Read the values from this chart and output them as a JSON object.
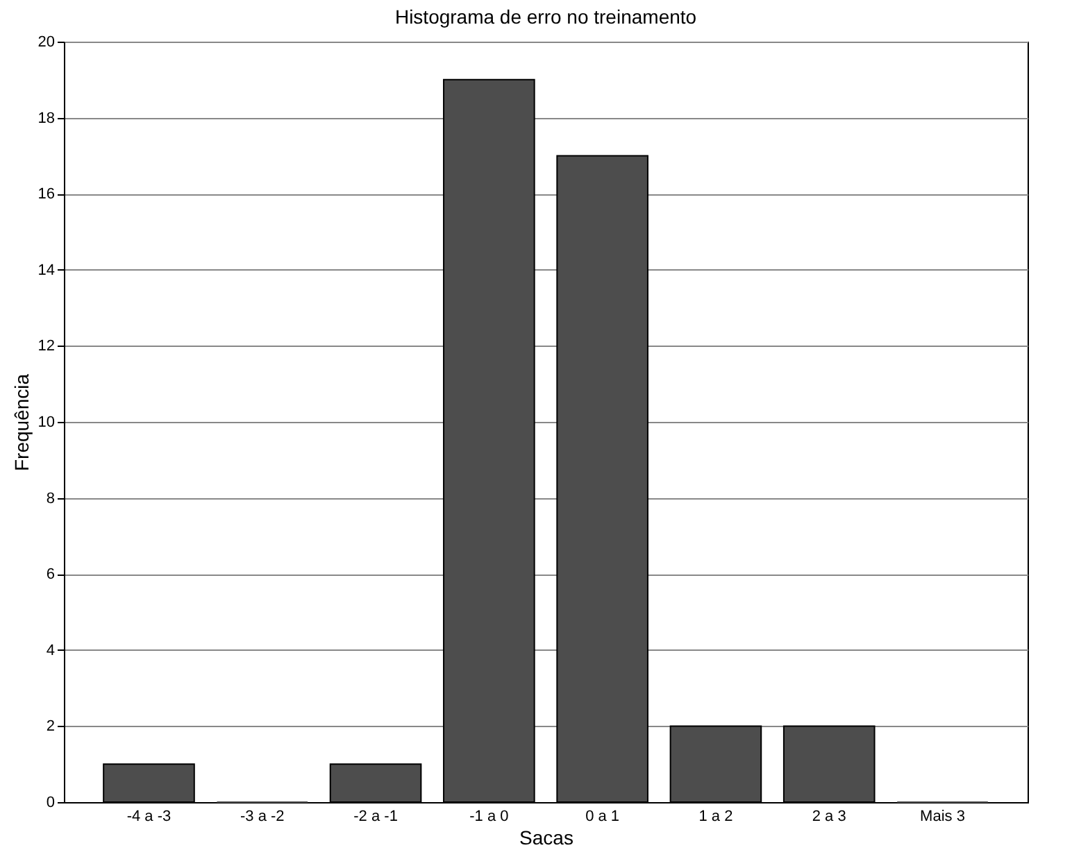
{
  "chart_data": {
    "type": "bar",
    "title": "Histograma de erro no treinamento",
    "xlabel": "Sacas",
    "ylabel": "Frequência",
    "categories": [
      "-4 a -3",
      "-3 a -2",
      "-2 a -1",
      "-1 a 0",
      "0 a 1",
      "1 a 2",
      "2 a 3",
      "Mais 3"
    ],
    "values": [
      1,
      0,
      1,
      19,
      17,
      2,
      2,
      0
    ],
    "color": "#4d4d4d",
    "ylim": [
      0,
      20
    ],
    "yticks": [
      0,
      2,
      4,
      6,
      8,
      10,
      12,
      14,
      16,
      18,
      20
    ],
    "grid": "y"
  }
}
